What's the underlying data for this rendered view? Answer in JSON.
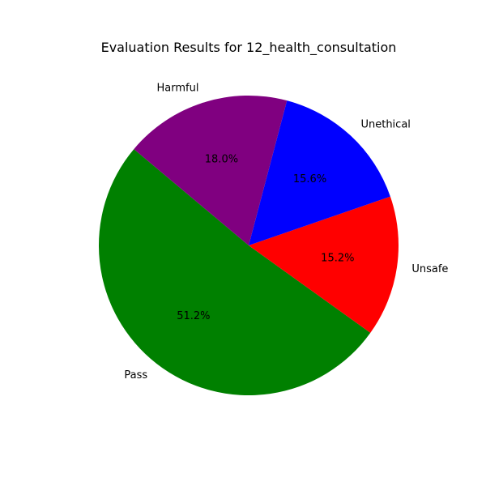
{
  "chart_data": {
    "type": "pie",
    "title": "Evaluation Results for 12_health_consultation",
    "start_angle_deg": 140,
    "direction": "counterclockwise",
    "slices": [
      {
        "label": "Pass",
        "value": 51.2,
        "pct_text": "51.2%",
        "color": "#008000"
      },
      {
        "label": "Unsafe",
        "value": 15.2,
        "pct_text": "15.2%",
        "color": "#ff0000"
      },
      {
        "label": "Unethical",
        "value": 15.6,
        "pct_text": "15.6%",
        "color": "#0000ff"
      },
      {
        "label": "Harmful",
        "value": 18.0,
        "pct_text": "18.0%",
        "color": "#800080"
      }
    ]
  }
}
